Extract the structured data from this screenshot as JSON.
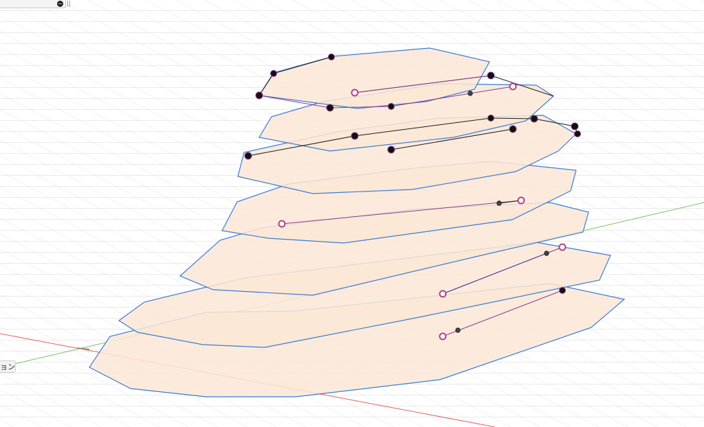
{
  "toolbar": {
    "collapse_icon": "minus-circle-icon"
  },
  "side_tab": {
    "label": "ョン"
  },
  "colors": {
    "grid": "#d9d9d9",
    "plane_fill": "#fbe7d6",
    "plane_edge": "#3a7bd5",
    "x_axis": "#e06060",
    "y_axis": "#7fbf5f",
    "curve_dark": "#1a1a1a",
    "curve_purple": "#8b3a8b",
    "point_fill": "#111111",
    "open_point": "#b0408a"
  }
}
